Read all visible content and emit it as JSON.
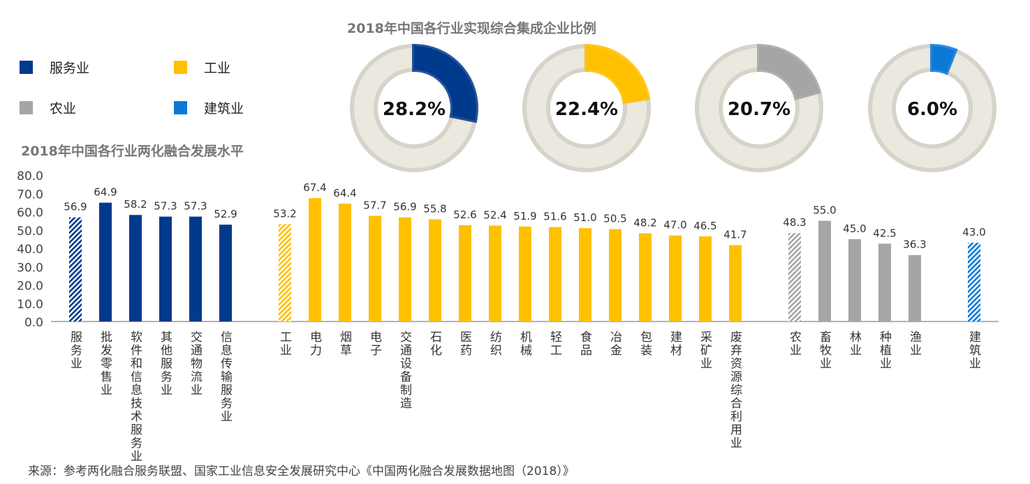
{
  "legend": [
    {
      "label": "服务业",
      "color": "#003a8c"
    },
    {
      "label": "工业",
      "color": "#ffc000"
    },
    {
      "label": "农业",
      "color": "#a5a5a5"
    },
    {
      "label": "建筑业",
      "color": "#0a7ad6"
    }
  ],
  "source": "来源：参考两化融合服务联盟、国家工业信息安全发展研究中心《中国两化融合发展数据地图（2018）》",
  "chart_data": [
    {
      "type": "pie",
      "subtype": "donut",
      "title": "2018年中国各行业实现综合集成企业比例",
      "slices": [
        {
          "name": "服务业",
          "value": 28.2,
          "label": "28.2%",
          "color": "#003a8c"
        },
        {
          "name": "工业",
          "value": 22.4,
          "label": "22.4%",
          "color": "#ffc000"
        },
        {
          "name": "农业",
          "value": 20.7,
          "label": "20.7%",
          "color": "#a5a5a5"
        },
        {
          "name": "建筑业",
          "value": 6.0,
          "label": "6.0%",
          "color": "#0a7ad6"
        }
      ]
    },
    {
      "type": "bar",
      "title": "2018年中国各行业两化融合发展水平",
      "ylim": [
        0,
        80
      ],
      "yticks": [
        "0.0",
        "10.0",
        "20.0",
        "30.0",
        "40.0",
        "50.0",
        "60.0",
        "70.0",
        "80.0"
      ],
      "groups": [
        {
          "name": "服务业",
          "color": "#003a8c",
          "categories": [
            "服务业",
            "批发零售业",
            "软件和信息技术服务业",
            "其他服务业",
            "交通物流业",
            "信息传输服务业"
          ],
          "values": [
            56.9,
            64.9,
            58.2,
            57.3,
            57.3,
            52.9
          ],
          "hatched_first": true
        },
        {
          "name": "工业",
          "color": "#ffc000",
          "categories": [
            "工业",
            "电力",
            "烟草",
            "电子",
            "交通设备制造",
            "石化",
            "医药",
            "纺织",
            "机械",
            "轻工",
            "食品",
            "冶金",
            "包装",
            "建材",
            "采矿业",
            "废弃资源综合利用业"
          ],
          "values": [
            53.2,
            67.4,
            64.4,
            57.7,
            56.9,
            55.8,
            52.6,
            52.4,
            51.9,
            51.6,
            51.0,
            50.5,
            48.2,
            47.0,
            46.5,
            41.7
          ],
          "hatched_first": true
        },
        {
          "name": "农业",
          "color": "#a5a5a5",
          "categories": [
            "农业",
            "畜牧业",
            "林业",
            "种植业",
            "渔业"
          ],
          "values": [
            48.3,
            55.0,
            45.0,
            42.5,
            36.3
          ],
          "hatched_first": true
        },
        {
          "name": "建筑业",
          "color": "#0a7ad6",
          "categories": [
            "建筑业"
          ],
          "values": [
            43.0
          ],
          "hatched_first": true
        }
      ]
    }
  ]
}
